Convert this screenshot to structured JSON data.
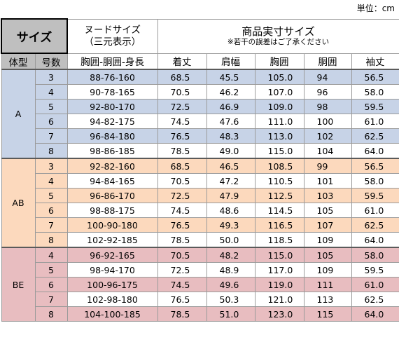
{
  "unit_label": "単位：cm",
  "header": {
    "size_title": "サイズ",
    "nude_title_line1": "ヌードサイズ",
    "nude_title_line2": "（三元表示）",
    "actual_title": "商品実寸サイズ",
    "actual_note": "※若干の誤差はご了承ください",
    "columns": {
      "body_type": "体型",
      "size_no": "号数",
      "nude": "胸囲-胴囲-身長",
      "length": "着丈",
      "shoulder": "肩幅",
      "chest": "胸囲",
      "waist": "胴囲",
      "sleeve": "袖丈"
    }
  },
  "groups": [
    {
      "type": "A",
      "rows": [
        {
          "no": "3",
          "nude": "88-76-160",
          "length": "68.5",
          "shoulder": "45.5",
          "chest": "105.0",
          "waist": "94",
          "sleeve": "56.5"
        },
        {
          "no": "4",
          "nude": "90-78-165",
          "length": "70.5",
          "shoulder": "46.2",
          "chest": "107.0",
          "waist": "96",
          "sleeve": "58.0"
        },
        {
          "no": "5",
          "nude": "92-80-170",
          "length": "72.5",
          "shoulder": "46.9",
          "chest": "109.0",
          "waist": "98",
          "sleeve": "59.5"
        },
        {
          "no": "6",
          "nude": "94-82-175",
          "length": "74.5",
          "shoulder": "47.6",
          "chest": "111.0",
          "waist": "100",
          "sleeve": "61.0"
        },
        {
          "no": "7",
          "nude": "96-84-180",
          "length": "76.5",
          "shoulder": "48.3",
          "chest": "113.0",
          "waist": "102",
          "sleeve": "62.5"
        },
        {
          "no": "8",
          "nude": "98-86-185",
          "length": "78.5",
          "shoulder": "49.0",
          "chest": "115.0",
          "waist": "104",
          "sleeve": "64.0"
        }
      ]
    },
    {
      "type": "AB",
      "rows": [
        {
          "no": "3",
          "nude": "92-82-160",
          "length": "68.5",
          "shoulder": "46.5",
          "chest": "108.5",
          "waist": "99",
          "sleeve": "56.5"
        },
        {
          "no": "4",
          "nude": "94-84-165",
          "length": "70.5",
          "shoulder": "47.2",
          "chest": "110.5",
          "waist": "101",
          "sleeve": "58.0"
        },
        {
          "no": "5",
          "nude": "96-86-170",
          "length": "72.5",
          "shoulder": "47.9",
          "chest": "112.5",
          "waist": "103",
          "sleeve": "59.5"
        },
        {
          "no": "6",
          "nude": "98-88-175",
          "length": "74.5",
          "shoulder": "48.6",
          "chest": "114.5",
          "waist": "105",
          "sleeve": "61.0"
        },
        {
          "no": "7",
          "nude": "100-90-180",
          "length": "76.5",
          "shoulder": "49.3",
          "chest": "116.5",
          "waist": "107",
          "sleeve": "62.5"
        },
        {
          "no": "8",
          "nude": "102-92-185",
          "length": "78.5",
          "shoulder": "50.0",
          "chest": "118.5",
          "waist": "109",
          "sleeve": "64.0"
        }
      ]
    },
    {
      "type": "BE",
      "rows": [
        {
          "no": "4",
          "nude": "96-92-165",
          "length": "70.5",
          "shoulder": "48.2",
          "chest": "115.0",
          "waist": "105",
          "sleeve": "58.0"
        },
        {
          "no": "5",
          "nude": "98-94-170",
          "length": "72.5",
          "shoulder": "48.9",
          "chest": "117.0",
          "waist": "109",
          "sleeve": "59.5"
        },
        {
          "no": "6",
          "nude": "100-96-175",
          "length": "74.5",
          "shoulder": "49.6",
          "chest": "119.0",
          "waist": "111",
          "sleeve": "61.0"
        },
        {
          "no": "7",
          "nude": "102-98-180",
          "length": "76.5",
          "shoulder": "50.3",
          "chest": "121.0",
          "waist": "113",
          "sleeve": "62.5"
        },
        {
          "no": "8",
          "nude": "104-100-185",
          "length": "78.5",
          "shoulder": "51.0",
          "chest": "123.0",
          "waist": "115",
          "sleeve": "64.0"
        }
      ]
    }
  ]
}
